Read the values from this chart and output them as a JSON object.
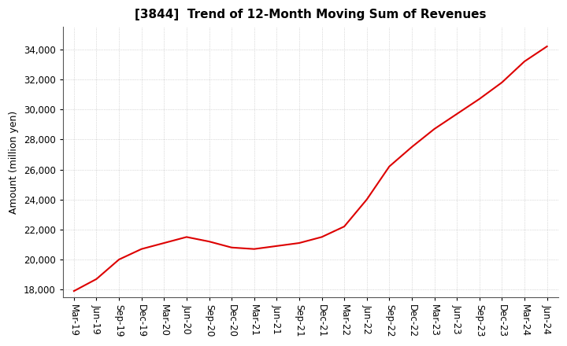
{
  "title": "[3844]  Trend of 12-Month Moving Sum of Revenues",
  "ylabel": "Amount (million yen)",
  "background_color": "#ffffff",
  "grid_color": "#aaaaaa",
  "line_color": "#dd0000",
  "ylim": [
    17500,
    35500
  ],
  "yticks": [
    18000,
    20000,
    22000,
    24000,
    26000,
    28000,
    30000,
    32000,
    34000
  ],
  "x_labels": [
    "Mar-19",
    "Jun-19",
    "Sep-19",
    "Dec-19",
    "Mar-20",
    "Jun-20",
    "Sep-20",
    "Dec-20",
    "Mar-21",
    "Jun-21",
    "Sep-21",
    "Dec-21",
    "Mar-22",
    "Jun-22",
    "Sep-22",
    "Dec-22",
    "Mar-23",
    "Jun-23",
    "Sep-23",
    "Dec-23",
    "Mar-24",
    "Jun-24"
  ],
  "values": [
    17900,
    18700,
    20000,
    20700,
    21100,
    21500,
    21200,
    20800,
    20700,
    20900,
    21100,
    21500,
    22200,
    24000,
    26200,
    27500,
    28700,
    29700,
    30700,
    31800,
    33200,
    34200
  ],
  "title_fontsize": 11,
  "ylabel_fontsize": 9,
  "tick_fontsize": 8.5
}
